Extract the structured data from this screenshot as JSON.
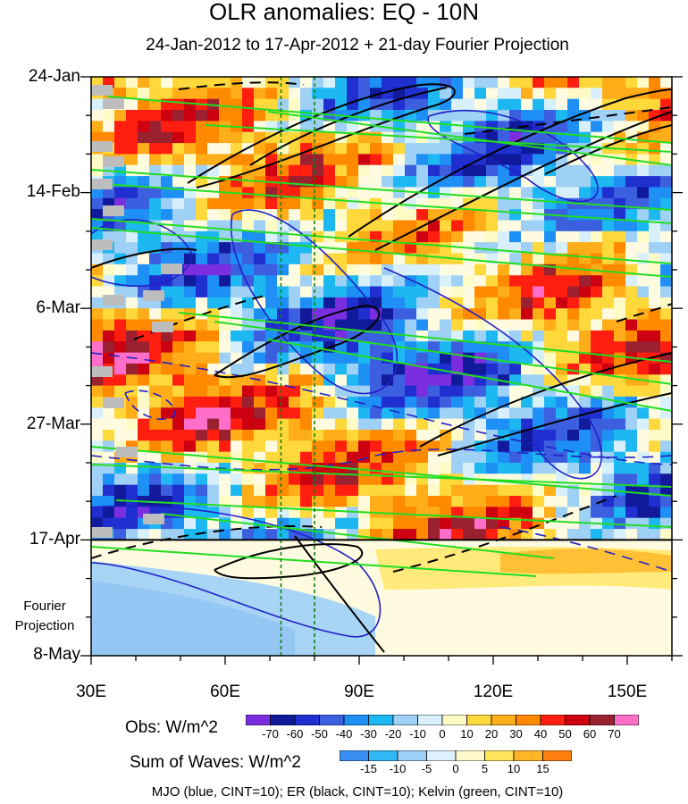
{
  "chart_data": {
    "type": "heatmap",
    "title": "OLR anomalies: EQ - 10N",
    "subtitle": "24-Jan-2012 to 17-Apr-2012 + 21-day Fourier Projection",
    "y_ticks": [
      "24-Jan",
      "14-Feb",
      "6-Mar",
      "27-Mar",
      "17-Apr",
      "8-May"
    ],
    "x_ticks": [
      "30E",
      "60E",
      "90E",
      "120E",
      "150E"
    ],
    "x_range": [
      30,
      160
    ],
    "y_range_days": [
      0,
      105
    ],
    "projection_start_day": 84,
    "projection_label": [
      "Fourier",
      "Projection"
    ],
    "reference_lines_lon": [
      72.5,
      80
    ],
    "obs_colorbar": {
      "label": "Obs: W/m^2",
      "ticks": [
        "-70",
        "-60",
        "-50",
        "-40",
        "-30",
        "-20",
        "-10",
        "0",
        "10",
        "20",
        "30",
        "40",
        "50",
        "60",
        "70"
      ],
      "colors": [
        "#7b2ee0",
        "#101a9a",
        "#1f2fd0",
        "#3c5fe0",
        "#1e8ff5",
        "#1db8f2",
        "#9fd0f5",
        "#d7f0fb",
        "#fffbc7",
        "#ffd83c",
        "#ffad18",
        "#ff8a00",
        "#ff1e10",
        "#cc0010",
        "#9b2030",
        "#ff6fc9"
      ]
    },
    "waves_colorbar": {
      "label": "Sum of Waves: W/m^2",
      "ticks": [
        "-15",
        "-10",
        "-5",
        "0",
        "5",
        "10",
        "15"
      ],
      "colors": [
        "#3b8ff2",
        "#2fb7f6",
        "#9ecff7",
        "#dff1ff",
        "#fff8cd",
        "#ffe45a",
        "#ffb526",
        "#ff7e10"
      ]
    },
    "contours": "MJO (blue, CINT=10); ER (black, CINT=10); Kelvin (green, CINT=10)"
  }
}
